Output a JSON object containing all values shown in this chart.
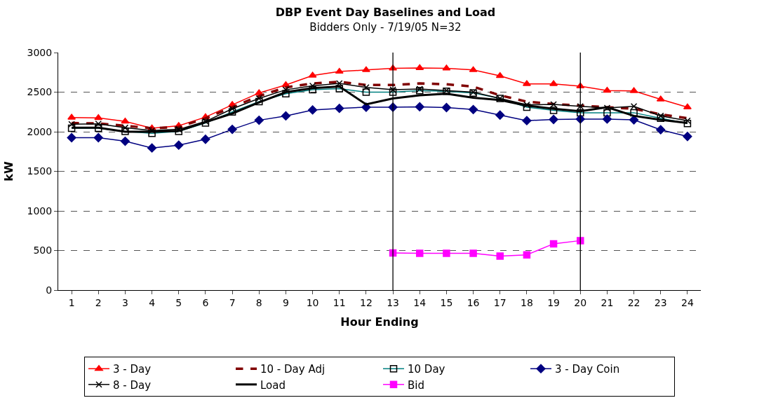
{
  "chart_data": {
    "type": "line",
    "title": "DBP Event Day Baselines and Load",
    "subtitle": "Bidders Only - 7/19/05 N=32",
    "xlabel": "Hour Ending",
    "ylabel": "kW",
    "x": [
      1,
      2,
      3,
      4,
      5,
      6,
      7,
      8,
      9,
      10,
      11,
      12,
      13,
      14,
      15,
      16,
      17,
      18,
      19,
      20,
      21,
      22,
      23,
      24
    ],
    "xlim": [
      0.5,
      24.5
    ],
    "xticks": [
      1,
      2,
      3,
      4,
      5,
      6,
      7,
      8,
      9,
      10,
      11,
      12,
      13,
      14,
      15,
      16,
      17,
      18,
      19,
      20,
      21,
      22,
      23,
      24
    ],
    "ylim": [
      0,
      3000
    ],
    "yticks": [
      0,
      500,
      1000,
      1500,
      2000,
      2500,
      3000
    ],
    "grid": "y",
    "legend": "bottom",
    "series": [
      {
        "name": "3 - Day",
        "color": "#ff0000",
        "marker": "triangle",
        "line_style": "solid",
        "values": [
          2180,
          2175,
          2130,
          2045,
          2075,
          2185,
          2340,
          2490,
          2590,
          2710,
          2760,
          2780,
          2800,
          2805,
          2800,
          2780,
          2705,
          2605,
          2605,
          2575,
          2520,
          2515,
          2410,
          2310
        ]
      },
      {
        "name": "10 - Day Adj",
        "color": "#800000",
        "marker": "none",
        "line_style": "dashed",
        "values": [
          2110,
          2105,
          2075,
          2045,
          2060,
          2170,
          2310,
          2450,
          2560,
          2610,
          2630,
          2590,
          2590,
          2610,
          2600,
          2570,
          2460,
          2380,
          2350,
          2330,
          2310,
          2290,
          2220,
          2170
        ]
      },
      {
        "name": "10 Day",
        "color": "#008080",
        "marker": "square",
        "line_style": "solid",
        "values": [
          2045,
          2045,
          2005,
          1980,
          2005,
          2110,
          2250,
          2380,
          2480,
          2530,
          2545,
          2500,
          2500,
          2520,
          2510,
          2490,
          2420,
          2310,
          2270,
          2240,
          2240,
          2240,
          2170,
          2105
        ]
      },
      {
        "name": "3 - Day Coin",
        "color": "#000080",
        "marker": "diamond",
        "line_style": "solid",
        "values": [
          1925,
          1925,
          1880,
          1795,
          1830,
          1905,
          2030,
          2145,
          2200,
          2275,
          2295,
          2310,
          2310,
          2315,
          2305,
          2280,
          2210,
          2140,
          2155,
          2160,
          2160,
          2150,
          2025,
          1940
        ]
      },
      {
        "name": "8 - Day",
        "color": "#000000",
        "marker": "cross",
        "line_style": "solid",
        "values": [
          2095,
          2100,
          2050,
          2015,
          2030,
          2130,
          2290,
          2420,
          2530,
          2580,
          2610,
          2560,
          2530,
          2540,
          2520,
          2500,
          2420,
          2340,
          2345,
          2320,
          2300,
          2320,
          2200,
          2140
        ]
      },
      {
        "name": "Load",
        "color": "#000000",
        "marker": "none",
        "line_style": "solid",
        "values": [
          2050,
          2050,
          2000,
          2000,
          2010,
          2120,
          2230,
          2370,
          2500,
          2550,
          2570,
          2345,
          2420,
          2460,
          2480,
          2430,
          2400,
          2330,
          2290,
          2260,
          2310,
          2200,
          2150,
          2110
        ]
      },
      {
        "name": "Bid",
        "color": "#ff00ff",
        "marker": "square",
        "line_style": "solid",
        "x": [
          13,
          14,
          15,
          16,
          17,
          18,
          19,
          20
        ],
        "values": [
          470,
          465,
          465,
          465,
          430,
          445,
          585,
          625
        ]
      }
    ],
    "ref_lines": [
      {
        "axis": "x",
        "value": 13,
        "color": "#000000",
        "line_style": "solid"
      },
      {
        "axis": "x",
        "value": 20,
        "color": "#000000",
        "line_style": "solid"
      }
    ]
  }
}
